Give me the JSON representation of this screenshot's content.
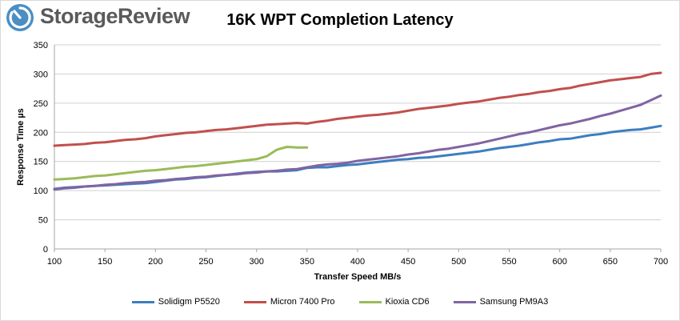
{
  "brand": {
    "name": "StorageReview",
    "icon": "storagereview-logo-icon"
  },
  "colors": {
    "logo_blue": "#4a8ec4",
    "logo_text": "#5a5a5a",
    "grid": "#d0d0d0"
  },
  "chart_data": {
    "type": "line",
    "title": "16K WPT Completion Latency",
    "xlabel": "Transfer Speed MB/s",
    "ylabel": "Response Time µs",
    "xlim": [
      100,
      700
    ],
    "ylim": [
      0,
      350
    ],
    "xticks": [
      100,
      150,
      200,
      250,
      300,
      350,
      400,
      450,
      500,
      550,
      600,
      650,
      700
    ],
    "yticks": [
      0,
      50,
      100,
      150,
      200,
      250,
      300,
      350
    ],
    "grid": true,
    "legend_position": "bottom",
    "series": [
      {
        "name": "Solidigm P5520",
        "color": "#3d7ebf",
        "x": [
          100,
          110,
          120,
          130,
          140,
          150,
          160,
          170,
          180,
          190,
          200,
          210,
          220,
          230,
          240,
          250,
          260,
          270,
          280,
          290,
          300,
          310,
          320,
          330,
          340,
          350,
          360,
          370,
          380,
          390,
          400,
          410,
          420,
          430,
          440,
          450,
          460,
          470,
          480,
          490,
          500,
          510,
          520,
          530,
          540,
          550,
          560,
          570,
          580,
          590,
          600,
          610,
          620,
          630,
          640,
          650,
          660,
          670,
          680,
          690,
          700
        ],
        "y": [
          103,
          105,
          106,
          107,
          108,
          109,
          110,
          111,
          112,
          113,
          115,
          117,
          119,
          120,
          122,
          123,
          125,
          127,
          129,
          131,
          132,
          133,
          133,
          134,
          135,
          139,
          140,
          140,
          142,
          144,
          145,
          147,
          149,
          151,
          153,
          154,
          156,
          157,
          159,
          161,
          163,
          165,
          167,
          170,
          173,
          175,
          177,
          180,
          183,
          185,
          188,
          189,
          192,
          195,
          197,
          200,
          202,
          204,
          205,
          208,
          211
        ]
      },
      {
        "name": "Micron 7400 Pro",
        "color": "#c0504d",
        "x": [
          100,
          110,
          120,
          130,
          140,
          150,
          160,
          170,
          180,
          190,
          200,
          210,
          220,
          230,
          240,
          250,
          260,
          270,
          280,
          290,
          300,
          310,
          320,
          330,
          340,
          350,
          360,
          370,
          380,
          390,
          400,
          410,
          420,
          430,
          440,
          450,
          460,
          470,
          480,
          490,
          500,
          510,
          520,
          530,
          540,
          550,
          560,
          570,
          580,
          590,
          600,
          610,
          620,
          630,
          640,
          650,
          660,
          670,
          680,
          690,
          700
        ],
        "y": [
          177,
          178,
          179,
          180,
          182,
          183,
          185,
          187,
          188,
          190,
          193,
          195,
          197,
          199,
          200,
          202,
          204,
          205,
          207,
          209,
          211,
          213,
          214,
          215,
          216,
          215,
          218,
          220,
          223,
          225,
          227,
          229,
          230,
          232,
          234,
          237,
          240,
          242,
          244,
          246,
          249,
          251,
          253,
          256,
          259,
          261,
          264,
          266,
          269,
          271,
          274,
          276,
          280,
          283,
          286,
          289,
          291,
          293,
          295,
          300,
          302
        ]
      },
      {
        "name": "Kioxia CD6",
        "color": "#9bbb59",
        "x": [
          100,
          110,
          120,
          130,
          140,
          150,
          160,
          170,
          180,
          190,
          200,
          210,
          220,
          230,
          240,
          250,
          260,
          270,
          280,
          290,
          300,
          310,
          320,
          330,
          340,
          350
        ],
        "y": [
          119,
          120,
          121,
          123,
          125,
          126,
          128,
          130,
          132,
          134,
          135,
          137,
          139,
          141,
          142,
          144,
          146,
          148,
          150,
          152,
          154,
          159,
          170,
          175,
          174,
          174
        ]
      },
      {
        "name": "Samsung PM9A3",
        "color": "#8064a2",
        "x": [
          100,
          110,
          120,
          130,
          140,
          150,
          160,
          170,
          180,
          190,
          200,
          210,
          220,
          230,
          240,
          250,
          260,
          270,
          280,
          290,
          300,
          310,
          320,
          330,
          340,
          350,
          360,
          370,
          380,
          390,
          400,
          410,
          420,
          430,
          440,
          450,
          460,
          470,
          480,
          490,
          500,
          510,
          520,
          530,
          540,
          550,
          560,
          570,
          580,
          590,
          600,
          610,
          620,
          630,
          640,
          650,
          660,
          670,
          680,
          690,
          700
        ],
        "y": [
          102,
          104,
          105,
          107,
          108,
          110,
          111,
          113,
          114,
          115,
          117,
          118,
          120,
          121,
          123,
          124,
          126,
          127,
          128,
          130,
          131,
          133,
          134,
          136,
          137,
          140,
          143,
          145,
          146,
          148,
          151,
          153,
          155,
          157,
          159,
          162,
          164,
          167,
          170,
          172,
          175,
          178,
          181,
          185,
          189,
          193,
          197,
          200,
          204,
          208,
          212,
          215,
          219,
          223,
          228,
          232,
          237,
          242,
          247,
          255,
          263
        ]
      }
    ]
  }
}
